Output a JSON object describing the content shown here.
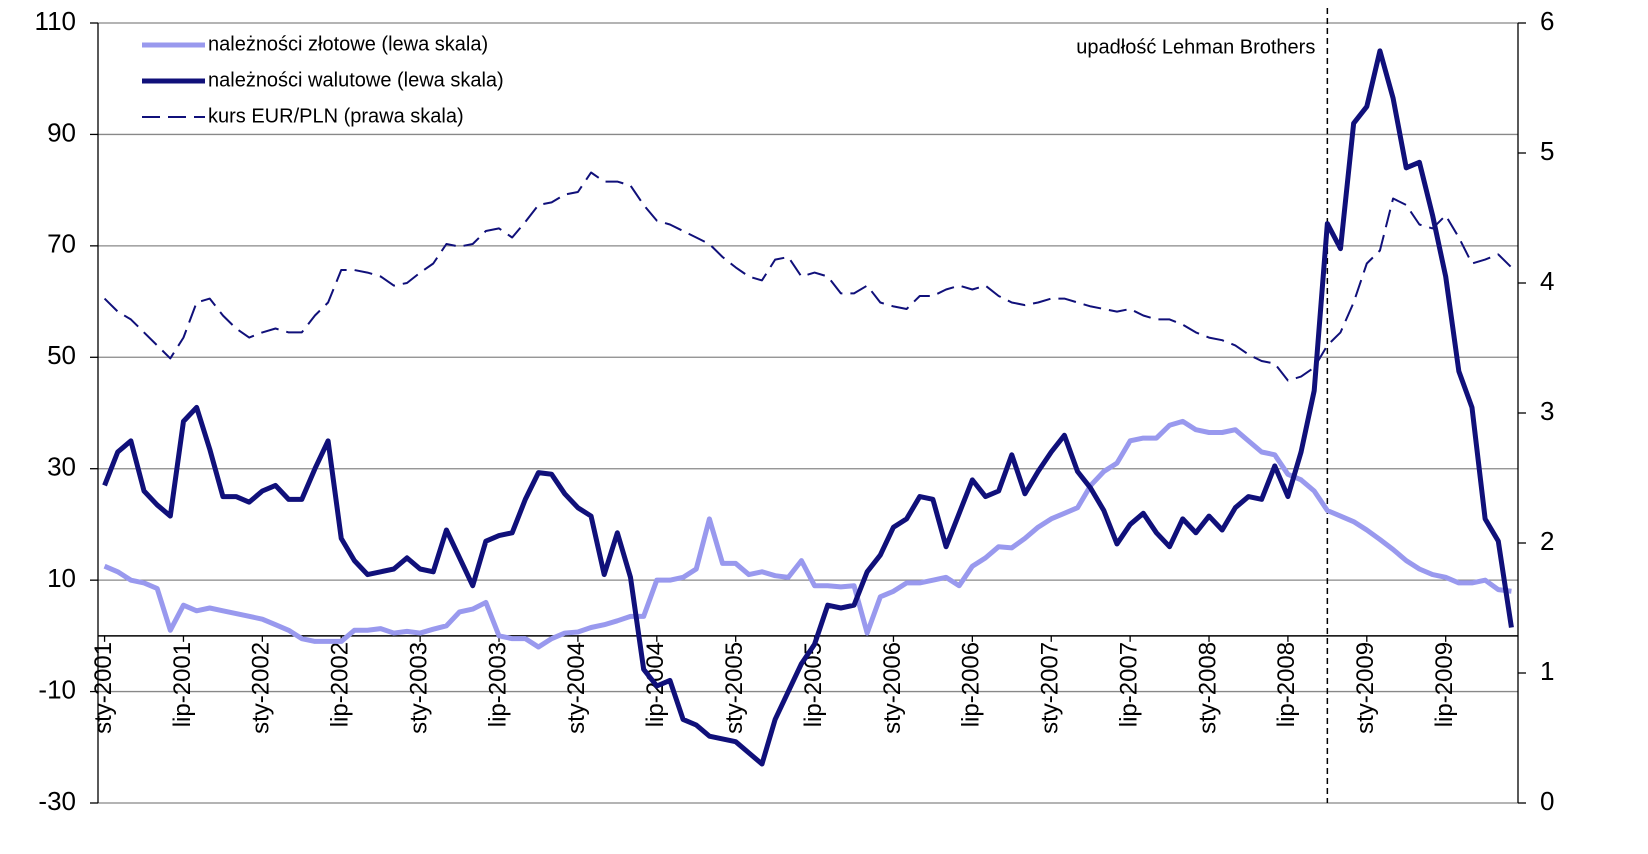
{
  "chart_data": {
    "type": "line",
    "categories": [
      "sty-2001",
      null,
      null,
      null,
      null,
      null,
      "lip-2001",
      null,
      null,
      null,
      null,
      null,
      "sty-2002",
      null,
      null,
      null,
      null,
      null,
      "lip-2002",
      null,
      null,
      null,
      null,
      null,
      "sty-2003",
      null,
      null,
      null,
      null,
      null,
      "lip-2003",
      null,
      null,
      null,
      null,
      null,
      "sty-2004",
      null,
      null,
      null,
      null,
      null,
      "lip-2004",
      null,
      null,
      null,
      null,
      null,
      "sty-2005",
      null,
      null,
      null,
      null,
      null,
      "lip-2005",
      null,
      null,
      null,
      null,
      null,
      "sty-2006",
      null,
      null,
      null,
      null,
      null,
      "lip-2006",
      null,
      null,
      null,
      null,
      null,
      "sty-2007",
      null,
      null,
      null,
      null,
      null,
      "lip-2007",
      null,
      null,
      null,
      null,
      null,
      "sty-2008",
      null,
      null,
      null,
      null,
      null,
      "lip-2008",
      null,
      null,
      null,
      null,
      null,
      "sty-2009",
      null,
      null,
      null,
      null,
      null,
      "lip-2009",
      null,
      null,
      null,
      null,
      null
    ],
    "series": [
      {
        "name": "należności złotowe (lewa skala)",
        "color": "#9999ee",
        "style": "solid",
        "values": [
          12.5,
          11.5,
          10,
          9.5,
          8.5,
          1,
          5.5,
          4.5,
          5,
          4.5,
          4,
          3.5,
          3,
          2,
          1,
          -0.5,
          -1,
          -1,
          -1,
          1,
          1,
          1.3,
          0.5,
          0.8,
          0.5,
          1.2,
          1.8,
          4.3,
          4.8,
          6,
          0,
          -0.5,
          -0.5,
          -2,
          -0.5,
          0.5,
          0.7,
          1.5,
          2,
          2.7,
          3.5,
          3.5,
          10,
          10,
          10.5,
          12,
          21,
          13,
          13,
          11,
          11.5,
          10.8,
          10.5,
          13.5,
          9,
          9,
          8.8,
          9,
          0.5,
          7,
          8,
          9.5,
          9.5,
          10,
          10.5,
          9,
          12.5,
          14,
          16,
          15.8,
          17.5,
          19.5,
          21,
          22,
          23,
          27,
          29.5,
          31,
          35,
          35.5,
          35.5,
          37.8,
          38.5,
          37,
          36.5,
          36.5,
          37,
          35,
          33,
          32.5,
          29,
          28,
          26,
          22.5,
          21.5,
          20.5,
          19,
          17.3,
          15.5,
          13.5,
          12,
          11,
          10.5,
          9.5,
          9.5,
          10,
          8.3,
          8
        ]
      },
      {
        "name": "należności walutowe (lewa skala)",
        "color": "#10107a",
        "style": "solid",
        "values": [
          27,
          33,
          35,
          26,
          23.5,
          21.5,
          38.5,
          41,
          33.5,
          25,
          25,
          24,
          26,
          27,
          24.5,
          24.5,
          30,
          35,
          17.5,
          13.5,
          11,
          11.5,
          12,
          14,
          12,
          11.5,
          19,
          14,
          9,
          17,
          18,
          18.5,
          24.5,
          29.3,
          29,
          25.5,
          23,
          21.5,
          11,
          18.5,
          10.5,
          -6,
          -9,
          -8,
          -15,
          -16,
          -18,
          -18.5,
          -19,
          -21,
          -23,
          -15,
          -10,
          -5,
          -1.5,
          5.5,
          5,
          5.5,
          11.5,
          14.5,
          19.5,
          21,
          25,
          24.5,
          16,
          22,
          28,
          25,
          26,
          32.5,
          25.5,
          29.5,
          33,
          36,
          29.5,
          26.5,
          22.5,
          16.5,
          20,
          22,
          18.5,
          16,
          21,
          18.5,
          21.5,
          19,
          23,
          25,
          24.5,
          30.5,
          25,
          33,
          44,
          74,
          69.5,
          92,
          95,
          105,
          96.5,
          84,
          85,
          75.5,
          64.5,
          47.5,
          41,
          21,
          17,
          1.5
        ]
      },
      {
        "name": "kurs EUR/PLN (prawa skala)",
        "color": "#10107a",
        "style": "dashed",
        "axis": "y2",
        "values": [
          3.88,
          3.78,
          3.72,
          3.62,
          3.52,
          3.42,
          3.58,
          3.85,
          3.88,
          3.75,
          3.65,
          3.58,
          3.62,
          3.65,
          3.62,
          3.62,
          3.75,
          3.85,
          4.1,
          4.1,
          4.08,
          4.05,
          3.98,
          4.0,
          4.08,
          4.15,
          4.3,
          4.28,
          4.3,
          4.4,
          4.42,
          4.35,
          4.47,
          4.6,
          4.62,
          4.68,
          4.7,
          4.85,
          4.78,
          4.78,
          4.75,
          4.6,
          4.48,
          4.45,
          4.4,
          4.35,
          4.3,
          4.2,
          4.12,
          4.05,
          4.02,
          4.18,
          4.2,
          4.05,
          4.08,
          4.05,
          3.92,
          3.92,
          3.98,
          3.85,
          3.82,
          3.8,
          3.9,
          3.9,
          3.95,
          3.98,
          3.95,
          3.98,
          3.9,
          3.85,
          3.83,
          3.85,
          3.88,
          3.88,
          3.85,
          3.82,
          3.8,
          3.78,
          3.8,
          3.75,
          3.72,
          3.72,
          3.68,
          3.62,
          3.58,
          3.56,
          3.52,
          3.45,
          3.4,
          3.38,
          3.25,
          3.28,
          3.35,
          3.52,
          3.62,
          3.85,
          4.15,
          4.25,
          4.65,
          4.6,
          4.45,
          4.42,
          4.52,
          4.35,
          4.15,
          4.18,
          4.22,
          4.12
        ]
      }
    ],
    "ylim": [
      -30,
      110
    ],
    "yticks": [
      -30,
      -10,
      10,
      30,
      50,
      70,
      90,
      110
    ],
    "y2lim": [
      0,
      6
    ],
    "y2ticks": [
      0,
      1,
      2,
      3,
      4,
      5,
      6
    ],
    "grid": true,
    "legend": "upper left",
    "annotation": {
      "text": "upadłość Lehman Brothers",
      "x": 93
    }
  }
}
